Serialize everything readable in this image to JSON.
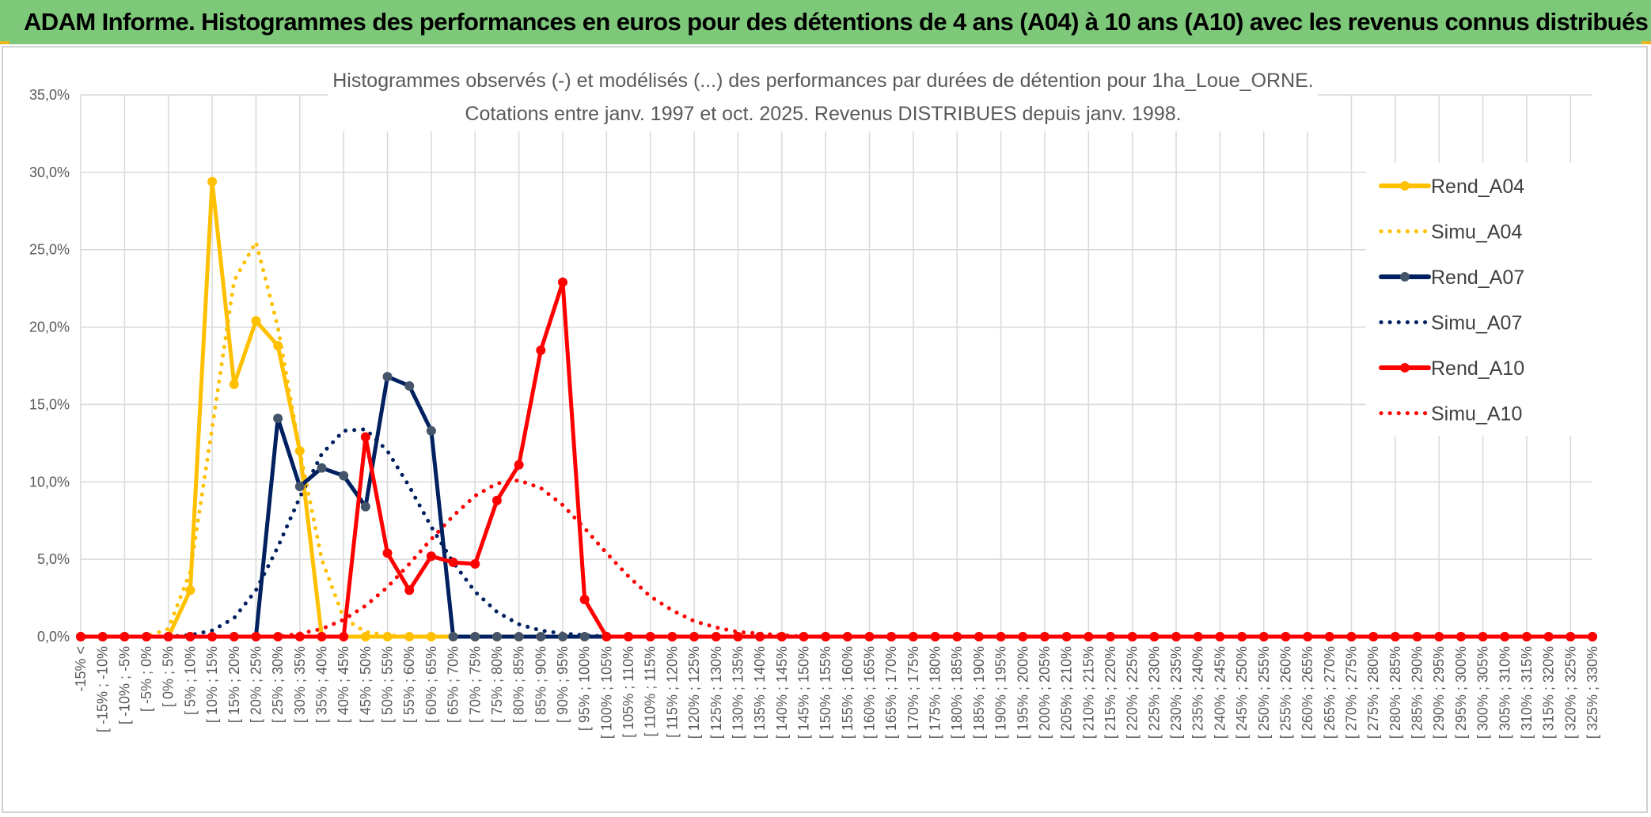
{
  "header": {
    "title": "ADAM Informe. Histogrammes des performances en euros pour des détentions de 4 ans (A04) à 10 ans (A10) avec les revenus connus distribués"
  },
  "colors": {
    "banner": "#7ec87a",
    "grid": "#d9d9d9",
    "a04": "#ffc000",
    "a07": "#002060",
    "a07_marker": "#44546a",
    "a10": "#ff0000"
  },
  "chart_data": {
    "type": "line",
    "title_lines": [
      "Histogrammes observés (-) et modélisés (...) des performances par durées de détention pour 1ha_Loue_ORNE.",
      "Cotations entre janv. 1997 et oct. 2025. Revenus DISTRIBUES depuis janv. 1998."
    ],
    "ylim": [
      0,
      35
    ],
    "yticks": [
      0,
      5,
      10,
      15,
      20,
      25,
      30,
      35
    ],
    "ytick_labels": [
      "0,0%",
      "5,0%",
      "10,0%",
      "15,0%",
      "20,0%",
      "25,0%",
      "30,0%",
      "35,0%"
    ],
    "categories": [
      "-15% <",
      "[ -15% ; -10%",
      "[ -10% ; -5%",
      "[ -5% ; 0%",
      "[ 0% ; 5%",
      "[ 5% ; 10%",
      "[ 10% ; 15%",
      "[ 15% ; 20%",
      "[ 20% ; 25%",
      "[ 25% ; 30%",
      "[ 30% ; 35%",
      "[ 35% ; 40%",
      "[ 40% ; 45%",
      "[ 45% ; 50%",
      "[ 50% ; 55%",
      "[ 55% ; 60%",
      "[ 60% ; 65%",
      "[ 65% ; 70%",
      "[ 70% ; 75%",
      "[ 75% ; 80%",
      "[ 80% ; 85%",
      "[ 85% ; 90%",
      "[ 90% ; 95%",
      "[ 95% ; 100%",
      "[ 100% ; 105%",
      "[ 105% ; 110%",
      "[ 110% ; 115%",
      "[ 115% ; 120%",
      "[ 120% ; 125%",
      "[ 125% ; 130%",
      "[ 130% ; 135%",
      "[ 135% ; 140%",
      "[ 140% ; 145%",
      "[ 145% ; 150%",
      "[ 150% ; 155%",
      "[ 155% ; 160%",
      "[ 160% ; 165%",
      "[ 165% ; 170%",
      "[ 170% ; 175%",
      "[ 175% ; 180%",
      "[ 180% ; 185%",
      "[ 185% ; 190%",
      "[ 190% ; 195%",
      "[ 195% ; 200%",
      "[ 200% ; 205%",
      "[ 205% ; 210%",
      "[ 210% ; 215%",
      "[ 215% ; 220%",
      "[ 220% ; 225%",
      "[ 225% ; 230%",
      "[ 230% ; 235%",
      "[ 235% ; 240%",
      "[ 240% ; 245%",
      "[ 245% ; 250%",
      "[ 250% ; 255%",
      "[ 255% ; 260%",
      "[ 260% ; 265%",
      "[ 265% ; 270%",
      "[ 270% ; 275%",
      "[ 275% ; 280%",
      "[ 280% ; 285%",
      "[ 285% ; 290%",
      "[ 290% ; 295%",
      "[ 295% ; 300%",
      "[ 300% ; 305%",
      "[ 305% ; 310%",
      "[ 310% ; 315%",
      "[ 315% ; 320%",
      "[ 320% ; 325%",
      "[ 325% ; 330%"
    ],
    "series": [
      {
        "name": "Rend_A04",
        "style": "solid",
        "marker": true,
        "color": "#ffc000",
        "values": [
          0,
          0,
          0,
          0,
          0,
          3.0,
          29.4,
          16.3,
          20.4,
          18.8,
          12.0,
          0,
          0,
          0,
          0,
          0,
          0,
          0,
          0,
          0,
          0,
          0,
          0,
          0,
          0,
          0,
          0,
          0,
          0,
          0,
          0,
          0,
          0,
          0,
          0,
          0,
          0,
          0,
          0,
          0,
          0,
          0,
          0,
          0,
          0,
          0,
          0,
          0,
          0,
          0,
          0,
          0,
          0,
          0,
          0,
          0,
          0,
          0,
          0,
          0,
          0,
          0,
          0,
          0,
          0,
          0,
          0,
          0,
          0,
          0
        ]
      },
      {
        "name": "Simu_A04",
        "style": "dotted",
        "marker": false,
        "color": "#ffc000",
        "values": [
          0,
          0,
          0,
          0,
          0.5,
          4.2,
          13.5,
          23.0,
          25.5,
          20.0,
          12.0,
          5.0,
          1.2,
          0.3,
          0.1,
          0,
          0,
          0,
          0,
          0,
          0,
          0,
          0,
          0,
          0,
          0,
          0,
          0,
          0,
          0,
          0,
          0,
          0,
          0,
          0,
          0,
          0,
          0,
          0,
          0,
          0,
          0,
          0,
          0,
          0,
          0,
          0,
          0,
          0,
          0,
          0,
          0,
          0,
          0,
          0,
          0,
          0,
          0,
          0,
          0,
          0,
          0,
          0,
          0,
          0,
          0,
          0,
          0,
          0,
          0
        ]
      },
      {
        "name": "Rend_A07",
        "style": "solid",
        "marker": true,
        "color": "#002060",
        "marker_color": "#44546a",
        "values": [
          0,
          0,
          0,
          0,
          0,
          0,
          0,
          0,
          0,
          14.1,
          9.7,
          10.9,
          10.4,
          8.4,
          16.8,
          16.2,
          13.3,
          0,
          0,
          0,
          0,
          0,
          0,
          0,
          0,
          0,
          0,
          0,
          0,
          0,
          0,
          0,
          0,
          0,
          0,
          0,
          0,
          0,
          0,
          0,
          0,
          0,
          0,
          0,
          0,
          0,
          0,
          0,
          0,
          0,
          0,
          0,
          0,
          0,
          0,
          0,
          0,
          0,
          0,
          0,
          0,
          0,
          0,
          0,
          0,
          0,
          0,
          0,
          0,
          0
        ]
      },
      {
        "name": "Simu_A07",
        "style": "dotted",
        "marker": false,
        "color": "#002060",
        "values": [
          0,
          0,
          0,
          0,
          0,
          0.1,
          0.4,
          1.2,
          3.0,
          5.8,
          9.0,
          11.8,
          13.3,
          13.4,
          12.0,
          9.7,
          7.1,
          4.8,
          2.9,
          1.6,
          0.8,
          0.4,
          0.2,
          0.1,
          0,
          0,
          0,
          0,
          0,
          0,
          0,
          0,
          0,
          0,
          0,
          0,
          0,
          0,
          0,
          0,
          0,
          0,
          0,
          0,
          0,
          0,
          0,
          0,
          0,
          0,
          0,
          0,
          0,
          0,
          0,
          0,
          0,
          0,
          0,
          0,
          0,
          0,
          0,
          0,
          0,
          0,
          0,
          0,
          0,
          0
        ]
      },
      {
        "name": "Rend_A10",
        "style": "solid",
        "marker": true,
        "color": "#ff0000",
        "values": [
          0,
          0,
          0,
          0,
          0,
          0,
          0,
          0,
          0,
          0,
          0,
          0,
          0,
          12.9,
          5.4,
          3.0,
          5.2,
          4.8,
          4.7,
          8.8,
          11.1,
          18.5,
          22.9,
          2.4,
          0,
          0,
          0,
          0,
          0,
          0,
          0,
          0,
          0,
          0,
          0,
          0,
          0,
          0,
          0,
          0,
          0,
          0,
          0,
          0,
          0,
          0,
          0,
          0,
          0,
          0,
          0,
          0,
          0,
          0,
          0,
          0,
          0,
          0,
          0,
          0,
          0,
          0,
          0,
          0,
          0,
          0,
          0,
          0,
          0,
          0
        ]
      },
      {
        "name": "Simu_A10",
        "style": "dotted",
        "marker": false,
        "color": "#ff0000",
        "values": [
          0,
          0,
          0,
          0,
          0,
          0,
          0,
          0,
          0,
          0,
          0.2,
          0.5,
          1.1,
          2.0,
          3.2,
          4.7,
          6.3,
          7.8,
          9.1,
          9.9,
          10.1,
          9.6,
          8.5,
          7.0,
          5.4,
          3.9,
          2.6,
          1.7,
          1.0,
          0.6,
          0.3,
          0.2,
          0.1,
          0,
          0,
          0,
          0,
          0,
          0,
          0,
          0,
          0,
          0,
          0,
          0,
          0,
          0,
          0,
          0,
          0,
          0,
          0,
          0,
          0,
          0,
          0,
          0,
          0,
          0,
          0,
          0,
          0,
          0,
          0,
          0,
          0,
          0,
          0,
          0,
          0
        ]
      }
    ],
    "legend_position": "top-right",
    "grid": true
  }
}
